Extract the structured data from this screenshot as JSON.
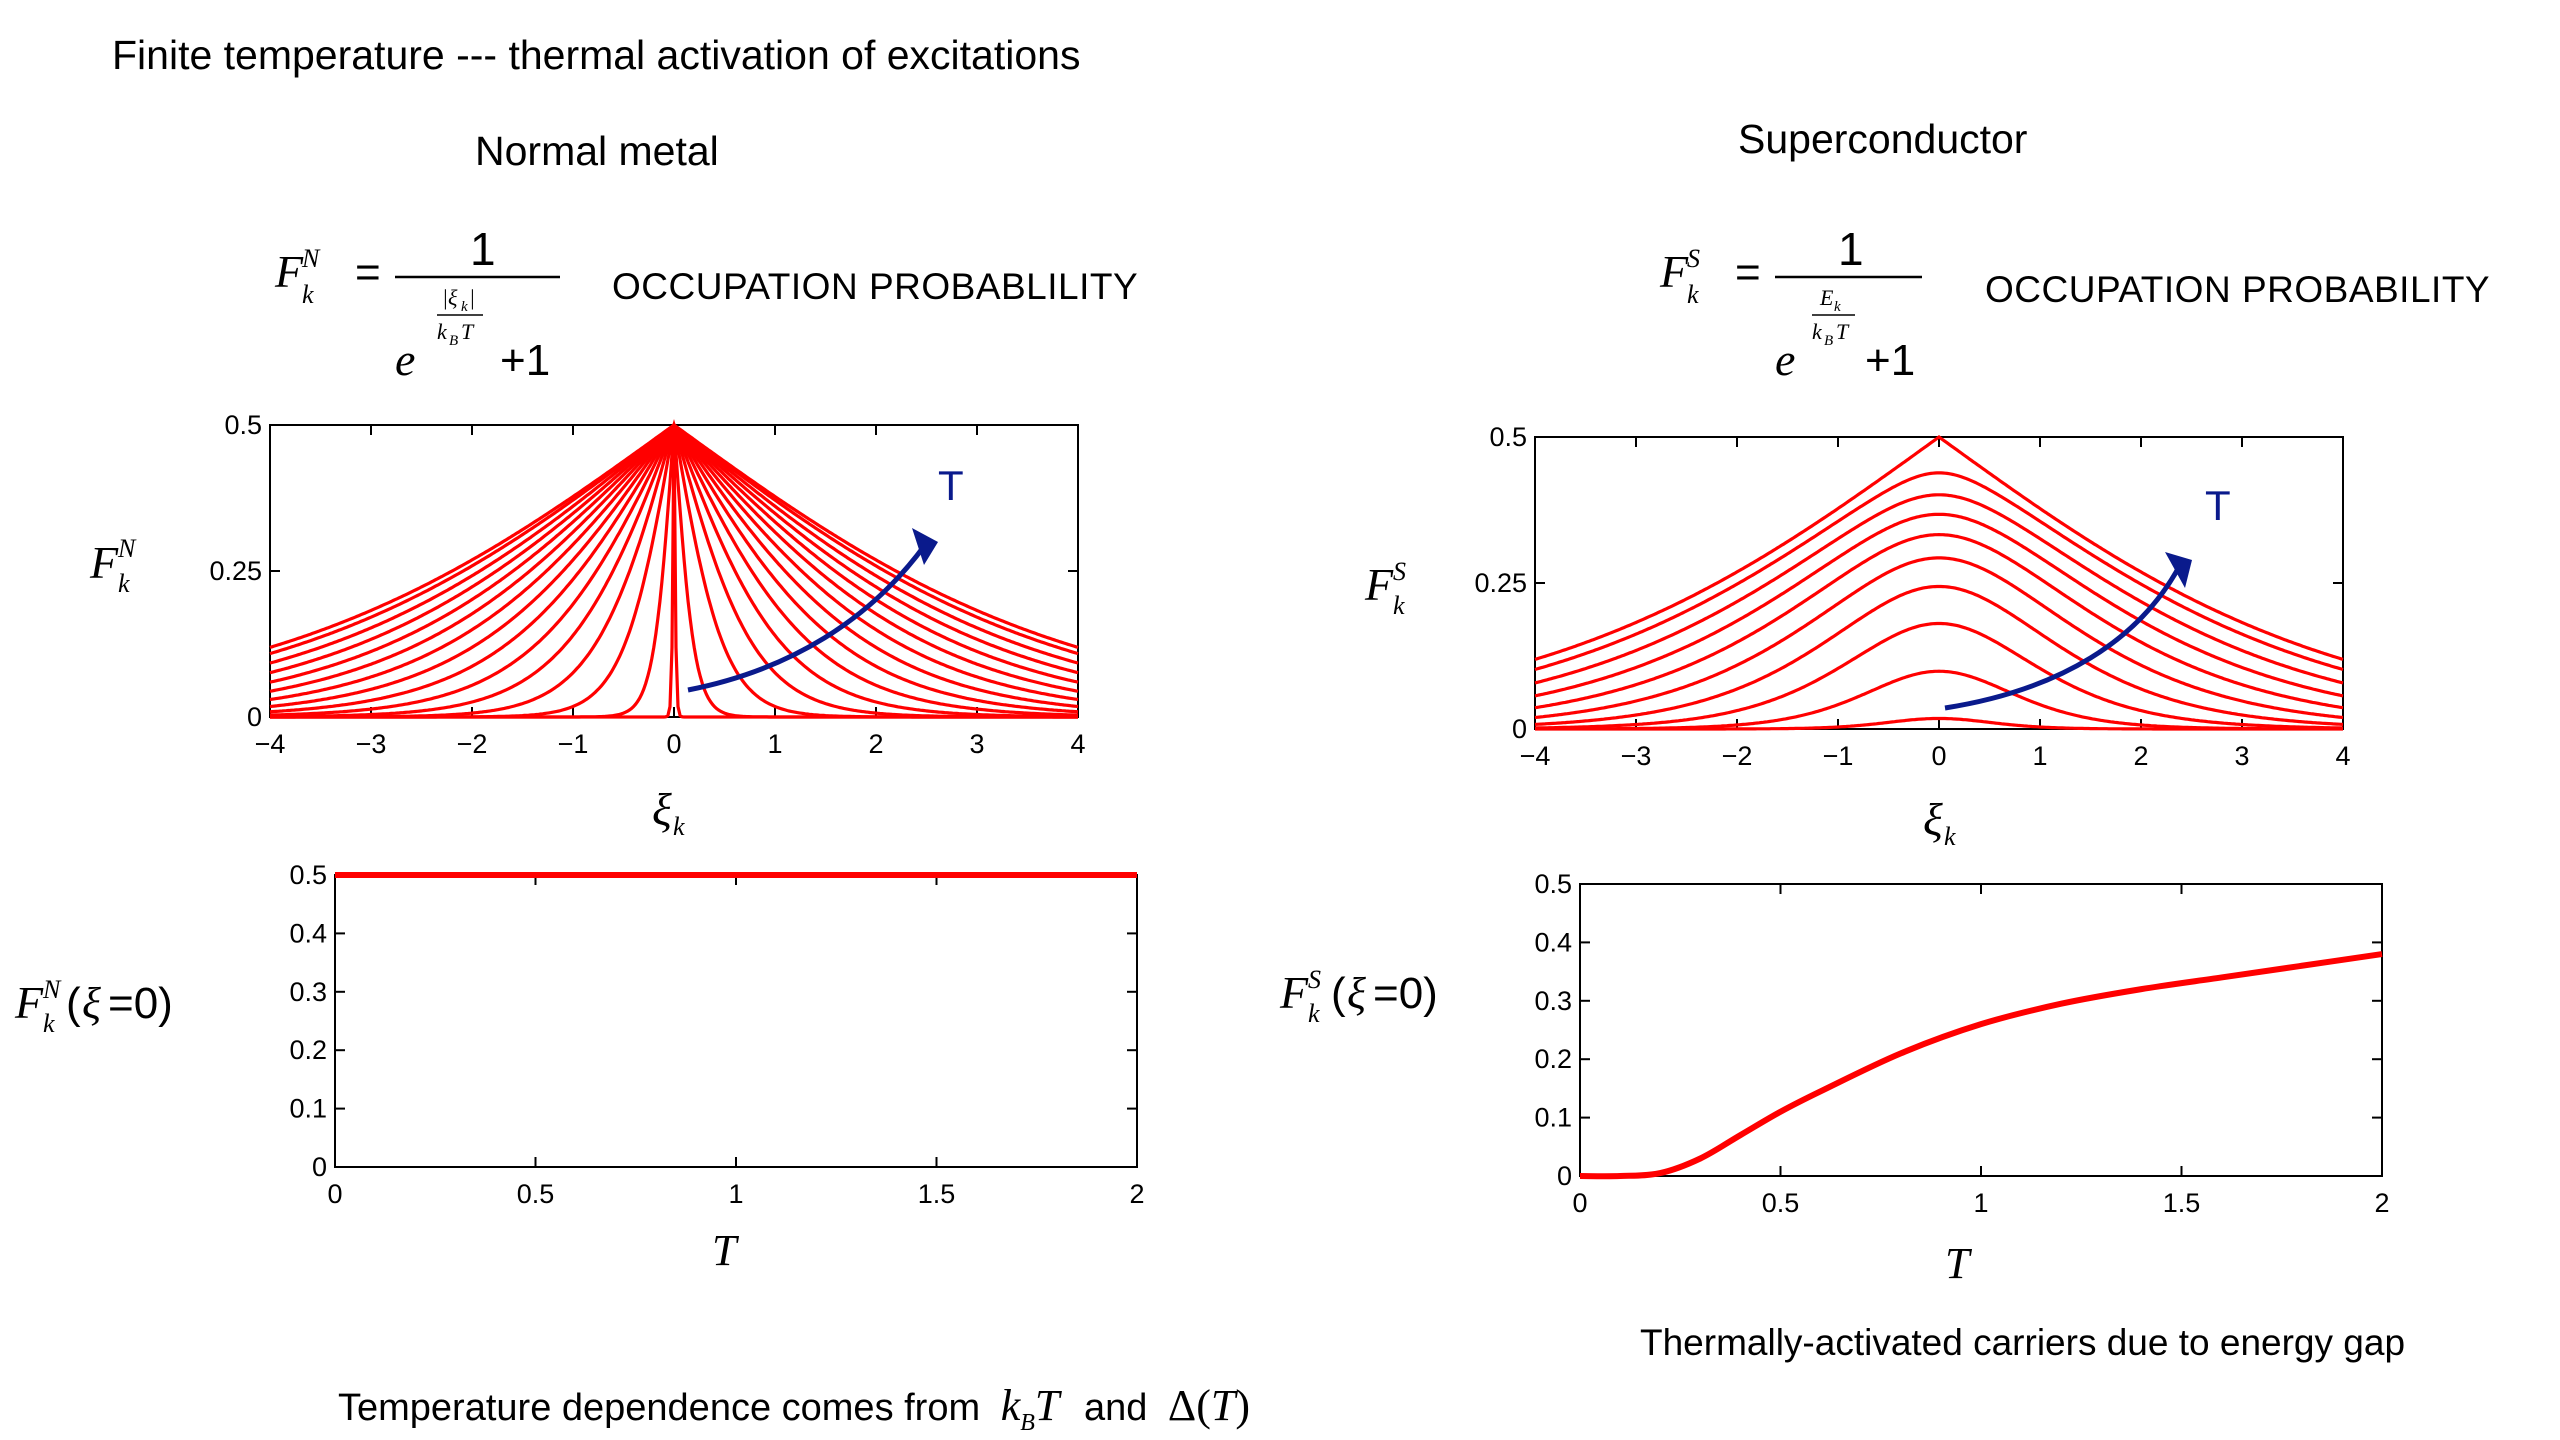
{
  "slide": {
    "title": "Finite temperature --- thermal activation of excitations",
    "left_heading": "Normal metal",
    "right_heading": "Superconductor",
    "left_label": "OCCUPATION PROBABLILITY",
    "right_label": "OCCUPATION PROBABILITY",
    "right_caption": "Thermally-activated carriers due to energy gap",
    "bottom_text_prefix": "Temperature dependence comes from",
    "bottom_text_and": "and",
    "math_kbT": "k_B T",
    "math_delta": "Δ(T)"
  },
  "formulas": {
    "normal": {
      "lhs": "F_k^N =",
      "numerator": "1",
      "denominator": "e^{|ξ_k|/(k_B T)} + 1"
    },
    "super": {
      "lhs": "F_k^S =",
      "numerator": "1",
      "denominator": "e^{E_k/(k_B T)} + 1"
    }
  },
  "colors": {
    "curve": "#ff0000",
    "arrow": "#0a1a8c",
    "axis": "#000000"
  },
  "chart_data": [
    {
      "id": "normal-occupation",
      "type": "line",
      "xlabel": "ξ_k",
      "ylabel": "F_k^N",
      "xlim": [
        -4,
        4
      ],
      "ylim": [
        0,
        0.5
      ],
      "xticks": [
        "−4",
        "−3",
        "−2",
        "−1",
        "0",
        "1",
        "2",
        "3",
        "4"
      ],
      "yticks": [
        "0",
        "0.25",
        "0.5"
      ],
      "annotation": "T",
      "function": "1/(exp(|x|/T)+1)",
      "temperatures": [
        0.01,
        0.1,
        0.25,
        0.4,
        0.55,
        0.7,
        0.85,
        1.0,
        1.15,
        1.3,
        1.45,
        1.6,
        1.75,
        1.9,
        2.0
      ]
    },
    {
      "id": "super-occupation",
      "type": "line",
      "xlabel": "ξ_k",
      "ylabel": "F_k^S",
      "xlim": [
        -4,
        4
      ],
      "ylim": [
        0,
        0.5
      ],
      "xticks": [
        "−4",
        "−3",
        "−2",
        "−1",
        "0",
        "1",
        "2",
        "3",
        "4"
      ],
      "yticks": [
        "0",
        "0.25",
        "0.5"
      ],
      "annotation": "T",
      "function": "1/(exp(sqrt(x^2+Δ^2)/T)+1)",
      "delta0": 1.0,
      "Tc": 2.0,
      "temperatures": [
        0.25,
        0.45,
        0.65,
        0.85,
        1.05,
        1.25,
        1.45,
        1.65,
        1.85,
        2.0
      ]
    },
    {
      "id": "normal-vs-T",
      "type": "line",
      "xlabel": "T",
      "ylabel": "F_k^N(ξ=0)",
      "xlim": [
        0,
        2
      ],
      "ylim": [
        0,
        0.5
      ],
      "xticks": [
        "0",
        "0.5",
        "1",
        "1.5",
        "2"
      ],
      "yticks": [
        "0",
        "0.1",
        "0.2",
        "0.3",
        "0.4",
        "0.5"
      ],
      "x": [
        0,
        0.5,
        1,
        1.5,
        2
      ],
      "y": [
        0.5,
        0.5,
        0.5,
        0.5,
        0.5
      ]
    },
    {
      "id": "super-vs-T",
      "type": "line",
      "xlabel": "T",
      "ylabel": "F_k^S(ξ=0)",
      "xlim": [
        0,
        2
      ],
      "ylim": [
        0,
        0.5
      ],
      "xticks": [
        "0",
        "0.5",
        "1",
        "1.5",
        "2"
      ],
      "yticks": [
        "0",
        "0.1",
        "0.2",
        "0.3",
        "0.4",
        "0.5"
      ],
      "x": [
        0,
        0.1,
        0.2,
        0.3,
        0.4,
        0.5,
        0.6,
        0.8,
        1.0,
        1.2,
        1.4,
        1.6,
        1.8,
        2.0
      ],
      "y": [
        0,
        0,
        0.005,
        0.03,
        0.07,
        0.11,
        0.145,
        0.21,
        0.26,
        0.295,
        0.32,
        0.34,
        0.36,
        0.38
      ]
    }
  ]
}
